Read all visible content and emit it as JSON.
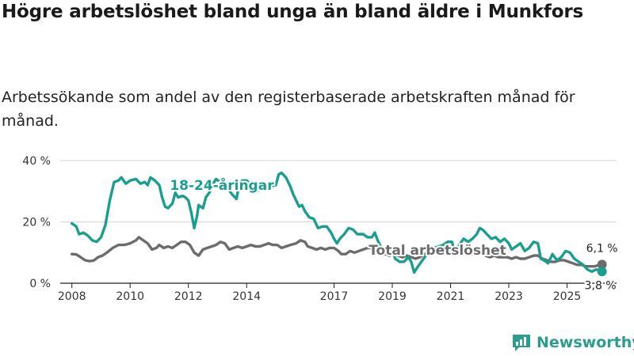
{
  "title": "Högre arbetslöshet bland unga än bland äldre i Munkfors",
  "subtitle": "Arbetssökande som andel av den registerbaserade arbetskraften månad för månad.",
  "brand": "Newsworthy",
  "colors": {
    "youth": "#1a9e8f",
    "total": "#6d6b6d",
    "grid": "#d4d4d4",
    "axis": "#222222",
    "brand": "#2a9d8f"
  },
  "chart_data": {
    "type": "line",
    "title": "Högre arbetslöshet bland unga än bland äldre i Munkfors",
    "xlabel": "",
    "ylabel": "",
    "xlim": [
      2007.6,
      2026.7
    ],
    "ylim": [
      0,
      40
    ],
    "grid": true,
    "y_ticks": [
      {
        "value": 0,
        "label": "0 %"
      },
      {
        "value": 20,
        "label": "20 %"
      },
      {
        "value": 40,
        "label": "40 %"
      }
    ],
    "x_ticks": [
      {
        "value": 2008,
        "label": "2008"
      },
      {
        "value": 2010,
        "label": "2010"
      },
      {
        "value": 2012,
        "label": "2012"
      },
      {
        "value": 2014,
        "label": "2014"
      },
      {
        "value": 2017,
        "label": "2017"
      },
      {
        "value": 2019,
        "label": "2019"
      },
      {
        "value": 2021,
        "label": "2021"
      },
      {
        "value": 2023,
        "label": "2023"
      },
      {
        "value": 2025,
        "label": "2025"
      }
    ],
    "series": [
      {
        "name": "18-24-åringar",
        "label": "18-24-åringar",
        "color": "#1a9e8f",
        "end_label": "3,8 %",
        "points": [
          [
            2008.0,
            19.5
          ],
          [
            2008.15,
            18.5
          ],
          [
            2008.25,
            16
          ],
          [
            2008.4,
            16.5
          ],
          [
            2008.55,
            15.5
          ],
          [
            2008.7,
            14
          ],
          [
            2008.85,
            13.5
          ],
          [
            2009.0,
            15
          ],
          [
            2009.15,
            19
          ],
          [
            2009.3,
            27
          ],
          [
            2009.45,
            33
          ],
          [
            2009.6,
            33.5
          ],
          [
            2009.7,
            34.5
          ],
          [
            2009.85,
            32.5
          ],
          [
            2010.0,
            33.5
          ],
          [
            2010.2,
            34
          ],
          [
            2010.35,
            32.5
          ],
          [
            2010.5,
            33
          ],
          [
            2010.6,
            32
          ],
          [
            2010.7,
            34.5
          ],
          [
            2010.85,
            33.5
          ],
          [
            2011.0,
            32
          ],
          [
            2011.1,
            28
          ],
          [
            2011.2,
            25
          ],
          [
            2011.3,
            24.5
          ],
          [
            2011.45,
            26
          ],
          [
            2011.55,
            29.5
          ],
          [
            2011.65,
            28
          ],
          [
            2011.8,
            28.5
          ],
          [
            2011.9,
            28
          ],
          [
            2012.0,
            27
          ],
          [
            2012.1,
            23
          ],
          [
            2012.2,
            18
          ],
          [
            2012.3,
            22
          ],
          [
            2012.35,
            25.5
          ],
          [
            2012.5,
            24.5
          ],
          [
            2012.6,
            28
          ],
          [
            2012.75,
            30
          ],
          [
            2012.85,
            32.5
          ],
          [
            2012.95,
            34
          ],
          [
            2013.1,
            33
          ],
          [
            2013.2,
            31
          ],
          [
            2013.35,
            31
          ],
          [
            2013.5,
            29
          ],
          [
            2013.65,
            27.5
          ],
          [
            2013.75,
            32.5
          ],
          [
            2013.85,
            33.5
          ],
          [
            2014.0,
            33.5
          ],
          [
            2014.2,
            31.5
          ],
          [
            2014.35,
            30
          ],
          [
            2014.5,
            32
          ],
          [
            2014.65,
            31
          ],
          [
            2014.8,
            31.5
          ],
          [
            2015.0,
            32
          ],
          [
            2015.1,
            35.5
          ],
          [
            2015.2,
            36
          ],
          [
            2015.35,
            34.5
          ],
          [
            2015.5,
            31.5
          ],
          [
            2015.6,
            29
          ],
          [
            2015.7,
            27
          ],
          [
            2015.8,
            25
          ],
          [
            2015.9,
            25.5
          ],
          [
            2016.0,
            23.5
          ],
          [
            2016.15,
            21.5
          ],
          [
            2016.3,
            21
          ],
          [
            2016.45,
            18
          ],
          [
            2016.6,
            18.5
          ],
          [
            2016.75,
            18.5
          ],
          [
            2016.9,
            16.5
          ],
          [
            2017.0,
            14.5
          ],
          [
            2017.1,
            13
          ],
          [
            2017.2,
            14.5
          ],
          [
            2017.35,
            16
          ],
          [
            2017.5,
            18
          ],
          [
            2017.65,
            17.5
          ],
          [
            2017.8,
            16
          ],
          [
            2018.0,
            16
          ],
          [
            2018.15,
            15
          ],
          [
            2018.3,
            15
          ],
          [
            2018.4,
            16.5
          ],
          [
            2018.5,
            14
          ],
          [
            2018.6,
            12
          ],
          [
            2018.7,
            11.5
          ],
          [
            2018.85,
            11
          ],
          [
            2019.0,
            11
          ],
          [
            2019.1,
            8
          ],
          [
            2019.25,
            7
          ],
          [
            2019.4,
            7
          ],
          [
            2019.55,
            8.5
          ],
          [
            2019.65,
            7
          ],
          [
            2019.75,
            3.5
          ],
          [
            2019.85,
            5
          ],
          [
            2020.0,
            7
          ],
          [
            2020.15,
            9
          ],
          [
            2020.3,
            12
          ],
          [
            2020.45,
            11.5
          ],
          [
            2020.6,
            12
          ],
          [
            2020.75,
            12.5
          ],
          [
            2020.9,
            13.5
          ],
          [
            2021.0,
            13.5
          ],
          [
            2021.05,
            13.5
          ],
          [
            2021.15,
            10
          ],
          [
            2021.3,
            12.5
          ],
          [
            2021.45,
            14.5
          ],
          [
            2021.6,
            13.5
          ],
          [
            2021.75,
            14.5
          ],
          [
            2021.9,
            16
          ],
          [
            2022.0,
            18
          ],
          [
            2022.1,
            17.5
          ],
          [
            2022.25,
            16
          ],
          [
            2022.4,
            14.5
          ],
          [
            2022.55,
            15
          ],
          [
            2022.7,
            13.5
          ],
          [
            2022.85,
            14.5
          ],
          [
            2023.0,
            13
          ],
          [
            2023.1,
            11
          ],
          [
            2023.25,
            12
          ],
          [
            2023.4,
            13
          ],
          [
            2023.55,
            10.5
          ],
          [
            2023.7,
            11.5
          ],
          [
            2023.85,
            13.5
          ],
          [
            2024.0,
            13
          ],
          [
            2024.1,
            8
          ],
          [
            2024.2,
            7.5
          ],
          [
            2024.35,
            6.5
          ],
          [
            2024.5,
            9.5
          ],
          [
            2024.65,
            7.5
          ],
          [
            2024.8,
            8.5
          ],
          [
            2024.95,
            10.5
          ],
          [
            2025.1,
            10
          ],
          [
            2025.25,
            8
          ],
          [
            2025.4,
            7
          ],
          [
            2025.55,
            6
          ],
          [
            2025.7,
            4.5
          ],
          [
            2025.85,
            3.8
          ],
          [
            2026.0,
            4.5
          ],
          [
            2026.2,
            3.8
          ]
        ]
      },
      {
        "name": "Total arbetslöshet",
        "label": "Total arbetslöshet",
        "color": "#6d6b6d",
        "end_label": "6,1 %",
        "points": [
          [
            2008.0,
            9.5
          ],
          [
            2008.15,
            9.4
          ],
          [
            2008.3,
            8.5
          ],
          [
            2008.45,
            7.5
          ],
          [
            2008.6,
            7.2
          ],
          [
            2008.75,
            7.4
          ],
          [
            2008.9,
            8.5
          ],
          [
            2009.05,
            9
          ],
          [
            2009.2,
            10
          ],
          [
            2009.4,
            11.5
          ],
          [
            2009.6,
            12.5
          ],
          [
            2009.8,
            12.5
          ],
          [
            2010.0,
            13
          ],
          [
            2010.2,
            14
          ],
          [
            2010.3,
            15
          ],
          [
            2010.45,
            14
          ],
          [
            2010.6,
            13
          ],
          [
            2010.75,
            11
          ],
          [
            2010.9,
            11.5
          ],
          [
            2011.0,
            12.5
          ],
          [
            2011.15,
            11.5
          ],
          [
            2011.3,
            12
          ],
          [
            2011.45,
            11.5
          ],
          [
            2011.6,
            12.5
          ],
          [
            2011.75,
            13.5
          ],
          [
            2011.9,
            13.5
          ],
          [
            2012.05,
            12.5
          ],
          [
            2012.2,
            10
          ],
          [
            2012.35,
            9
          ],
          [
            2012.5,
            11
          ],
          [
            2012.65,
            11.5
          ],
          [
            2012.8,
            12
          ],
          [
            2012.95,
            12.5
          ],
          [
            2013.1,
            13.5
          ],
          [
            2013.25,
            13
          ],
          [
            2013.4,
            11
          ],
          [
            2013.55,
            11.5
          ],
          [
            2013.7,
            12
          ],
          [
            2013.85,
            11.5
          ],
          [
            2014.0,
            12
          ],
          [
            2014.15,
            12.5
          ],
          [
            2014.3,
            12
          ],
          [
            2014.45,
            12
          ],
          [
            2014.6,
            12.5
          ],
          [
            2014.75,
            13
          ],
          [
            2014.9,
            12.5
          ],
          [
            2015.05,
            12.5
          ],
          [
            2015.2,
            11.5
          ],
          [
            2015.35,
            12
          ],
          [
            2015.5,
            12.5
          ],
          [
            2015.7,
            13
          ],
          [
            2015.85,
            14
          ],
          [
            2016.0,
            13.5
          ],
          [
            2016.1,
            12
          ],
          [
            2016.25,
            11.5
          ],
          [
            2016.4,
            11
          ],
          [
            2016.55,
            11.5
          ],
          [
            2016.7,
            11
          ],
          [
            2016.85,
            11.5
          ],
          [
            2017.0,
            11.5
          ],
          [
            2017.15,
            10.5
          ],
          [
            2017.25,
            9.5
          ],
          [
            2017.4,
            9.5
          ],
          [
            2017.55,
            10.5
          ],
          [
            2017.7,
            10
          ],
          [
            2017.85,
            10.5
          ],
          [
            2018.0,
            11
          ],
          [
            2018.15,
            11.5
          ],
          [
            2018.3,
            11.5
          ],
          [
            2018.45,
            10.8
          ],
          [
            2018.6,
            10
          ],
          [
            2018.75,
            9.5
          ],
          [
            2018.9,
            9
          ],
          [
            2019.05,
            9.5
          ],
          [
            2019.2,
            9
          ],
          [
            2019.35,
            8.5
          ],
          [
            2019.5,
            9
          ],
          [
            2019.65,
            8.5
          ],
          [
            2019.8,
            8
          ],
          [
            2019.95,
            8.5
          ],
          [
            2020.1,
            9.5
          ],
          [
            2020.25,
            10
          ],
          [
            2020.4,
            10.5
          ],
          [
            2020.55,
            10
          ],
          [
            2020.7,
            10.5
          ],
          [
            2020.85,
            10.5
          ],
          [
            2021.0,
            11
          ],
          [
            2021.15,
            10.5
          ],
          [
            2021.3,
            10
          ],
          [
            2021.45,
            10
          ],
          [
            2021.6,
            9.5
          ],
          [
            2021.75,
            9.5
          ],
          [
            2021.9,
            9.5
          ],
          [
            2022.05,
            10
          ],
          [
            2022.2,
            9
          ],
          [
            2022.35,
            8.5
          ],
          [
            2022.5,
            9
          ],
          [
            2022.65,
            8.5
          ],
          [
            2022.8,
            8.5
          ],
          [
            2022.95,
            8.5
          ],
          [
            2023.1,
            8
          ],
          [
            2023.25,
            8.5
          ],
          [
            2023.4,
            8
          ],
          [
            2023.55,
            8
          ],
          [
            2023.7,
            8.5
          ],
          [
            2023.85,
            9
          ],
          [
            2024.0,
            9
          ],
          [
            2024.15,
            8
          ],
          [
            2024.3,
            7.5
          ],
          [
            2024.45,
            7
          ],
          [
            2024.6,
            7
          ],
          [
            2024.75,
            7.5
          ],
          [
            2024.9,
            7.5
          ],
          [
            2025.05,
            7
          ],
          [
            2025.2,
            6.5
          ],
          [
            2025.35,
            6
          ],
          [
            2025.5,
            6
          ],
          [
            2025.65,
            5.5
          ],
          [
            2025.8,
            5.5
          ],
          [
            2025.95,
            5.5
          ],
          [
            2026.1,
            6
          ],
          [
            2026.2,
            6.1
          ]
        ]
      }
    ]
  }
}
